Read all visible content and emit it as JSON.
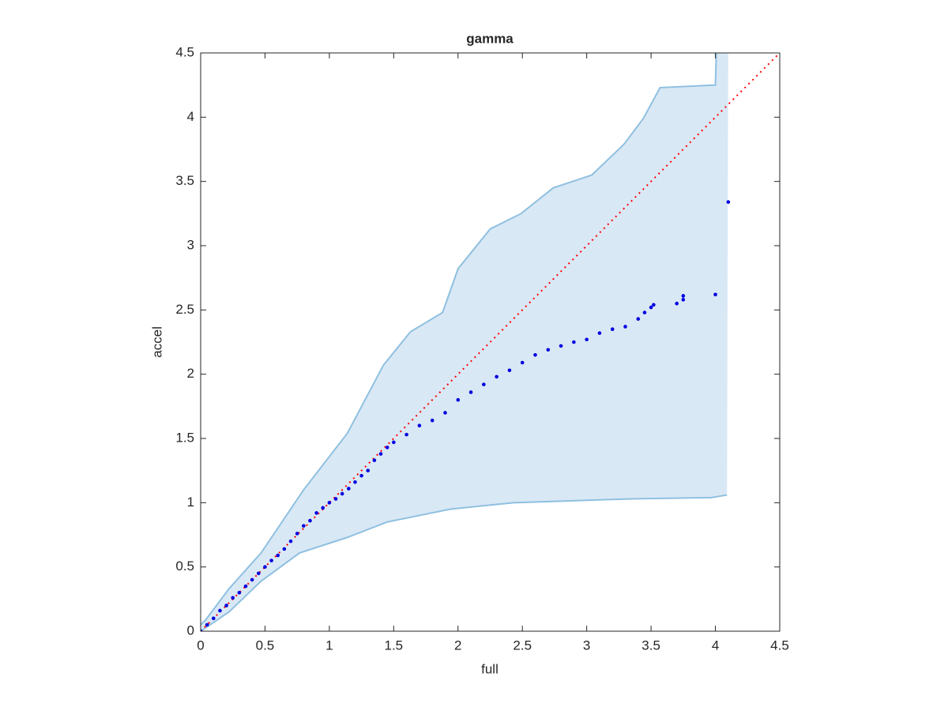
{
  "chart_data": {
    "type": "scatter",
    "title": "gamma",
    "xlabel": "full",
    "ylabel": "accel",
    "xlim": [
      0,
      4.5
    ],
    "ylim": [
      0,
      4.5
    ],
    "xticks": [
      0,
      0.5,
      1,
      1.5,
      2,
      2.5,
      3,
      3.5,
      4,
      4.5
    ],
    "yticks": [
      0,
      0.5,
      1,
      1.5,
      2,
      2.5,
      3,
      3.5,
      4,
      4.5
    ],
    "band": {
      "fill": "#d9e8f5",
      "edge": "#8fc0e0",
      "upper": {
        "x": [
          0,
          0.04,
          0.22,
          0.47,
          0.8,
          1.14,
          1.42,
          1.63,
          1.88,
          2.0,
          2.25,
          2.49,
          2.74,
          3.04,
          3.29,
          3.44,
          3.57,
          4.0,
          4.01,
          4.1
        ],
        "y": [
          0.05,
          0.09,
          0.33,
          0.61,
          1.1,
          1.54,
          2.07,
          2.33,
          2.48,
          2.82,
          3.13,
          3.25,
          3.45,
          3.55,
          3.79,
          3.99,
          4.23,
          4.25,
          4.6,
          4.6
        ]
      },
      "lower": {
        "x": [
          0,
          0.22,
          0.47,
          0.77,
          1.14,
          1.45,
          1.94,
          2.43,
          3.35,
          3.97,
          4.09
        ],
        "y": [
          0,
          0.15,
          0.39,
          0.61,
          0.73,
          0.85,
          0.95,
          1.0,
          1.03,
          1.04,
          1.06
        ]
      }
    },
    "reference": {
      "color": "#ff0000",
      "x": [
        0,
        4.5
      ],
      "y": [
        0,
        4.5
      ]
    },
    "series": [
      {
        "color": "#0000e0",
        "x": [
          0,
          0.05,
          0.1,
          0.15,
          0.2,
          0.25,
          0.3,
          0.35,
          0.4,
          0.45,
          0.5,
          0.55,
          0.6,
          0.65,
          0.7,
          0.75,
          0.8,
          0.85,
          0.9,
          0.95,
          1.0,
          1.05,
          1.1,
          1.15,
          1.2,
          1.25,
          1.3,
          1.35,
          1.4,
          1.45,
          1.5,
          1.6,
          1.7,
          1.8,
          1.9,
          2.0,
          2.1,
          2.2,
          2.3,
          2.4,
          2.5,
          2.6,
          2.7,
          2.8,
          2.9,
          3.0,
          3.1,
          3.2,
          3.3,
          3.4,
          3.45,
          3.5,
          3.52,
          3.7,
          3.75,
          3.75,
          4.0,
          4.1
        ],
        "values": [
          0,
          0.05,
          0.1,
          0.16,
          0.2,
          0.26,
          0.3,
          0.35,
          0.4,
          0.45,
          0.5,
          0.55,
          0.59,
          0.64,
          0.7,
          0.76,
          0.82,
          0.86,
          0.92,
          0.96,
          1.0,
          1.03,
          1.07,
          1.11,
          1.16,
          1.21,
          1.25,
          1.33,
          1.38,
          1.43,
          1.47,
          1.53,
          1.6,
          1.64,
          1.7,
          1.8,
          1.86,
          1.92,
          1.98,
          2.03,
          2.09,
          2.15,
          2.19,
          2.22,
          2.25,
          2.27,
          2.32,
          2.35,
          2.37,
          2.43,
          2.48,
          2.52,
          2.54,
          2.55,
          2.58,
          2.61,
          2.62,
          3.34
        ]
      }
    ]
  }
}
